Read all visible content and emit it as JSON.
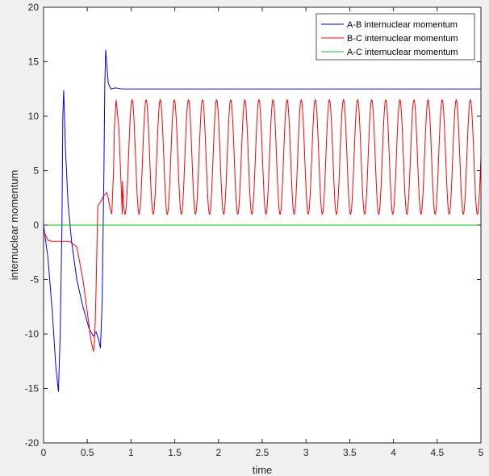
{
  "chart_data": {
    "type": "line",
    "title": "",
    "xlabel": "time",
    "ylabel": "internuclear momentum",
    "xlim": [
      0,
      5
    ],
    "ylim": [
      -20,
      20
    ],
    "xticks": [
      "0",
      "0.5",
      "1",
      "1.5",
      "2",
      "2.5",
      "3",
      "3.5",
      "4",
      "4.5",
      "5"
    ],
    "yticks": [
      "-20",
      "-15",
      "-10",
      "-5",
      "0",
      "5",
      "10",
      "15",
      "20"
    ],
    "grid": false,
    "legend_position": "top-right",
    "series": [
      {
        "name": "A-B internuclear momentum",
        "color": "#0000ff",
        "x": [
          0,
          0.05,
          0.1,
          0.14,
          0.17,
          0.19,
          0.21,
          0.22,
          0.23,
          0.25,
          0.28,
          0.32,
          0.38,
          0.45,
          0.52,
          0.57,
          0.6,
          0.63,
          0.65,
          0.67,
          0.69,
          0.7,
          0.71,
          0.72,
          0.74,
          0.77,
          0.82,
          0.9,
          1.0,
          1.5,
          2,
          3,
          4,
          5
        ],
        "y": [
          0,
          -3,
          -8,
          -13,
          -15.3,
          -10,
          0,
          10,
          12.4,
          7,
          2,
          -1.5,
          -5,
          -7.5,
          -9.5,
          -10.2,
          -9.8,
          -10.5,
          -11.3,
          -7,
          5,
          13,
          16.1,
          15,
          13,
          12.5,
          12.6,
          12.5,
          12.5,
          12.5,
          12.5,
          12.5,
          12.5,
          12.5
        ]
      },
      {
        "name": "B-C internuclear momentum",
        "color": "#ff0000",
        "x": [
          0,
          0.05,
          0.1,
          0.2,
          0.3,
          0.38,
          0.45,
          0.5,
          0.54,
          0.57,
          0.58,
          0.59,
          0.6,
          0.61,
          0.62,
          0.65,
          0.68,
          0.7,
          0.72,
          0.74,
          0.76,
          0.78,
          0.8,
          0.81,
          0.83,
          0.86,
          0.9
        ],
        "y": [
          -0.5,
          -1.4,
          -1.5,
          -1.5,
          -1.5,
          -2,
          -5,
          -8,
          -10.5,
          -11.6,
          -11,
          -9,
          -6,
          -2,
          1.8,
          2.1,
          2.6,
          2.8,
          3,
          2.5,
          1.5,
          1,
          5,
          9,
          11.5,
          9,
          1
        ],
        "oscillation": {
          "t_start": 0.81,
          "t_end": 5,
          "min": 1,
          "max": 11.5,
          "cycles": 26
        }
      },
      {
        "name": "A-C internuclear momentum",
        "color": "#00cc00",
        "x": [
          0,
          5
        ],
        "y": [
          0,
          0
        ]
      }
    ]
  }
}
